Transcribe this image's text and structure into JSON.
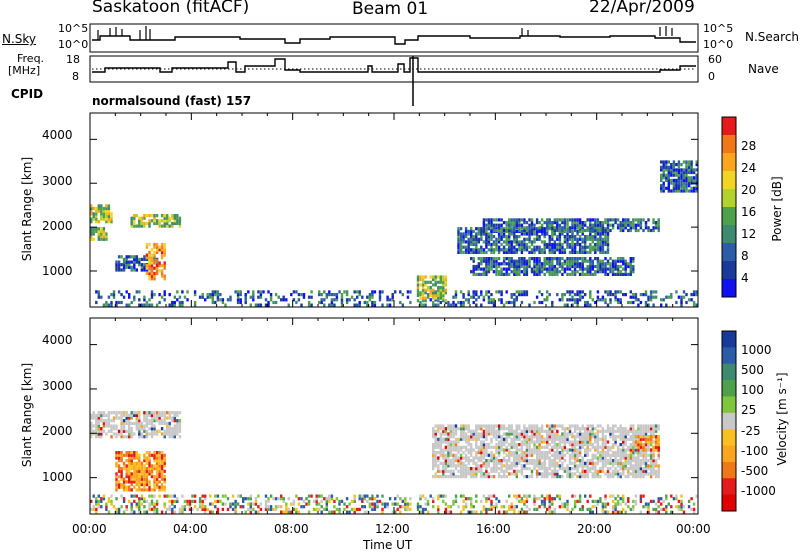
{
  "header": {
    "station": "Saskatoon (fitACF)",
    "beam": "Beam 01",
    "date": "22/Apr/2009"
  },
  "side_labels": {
    "nsky": "N.Sky",
    "freq_top": "Freq.",
    "freq_unit": "[MHz]",
    "cpid": "CPID",
    "nsearch": "N.Search",
    "nave": "Nave"
  },
  "cpid_text": "normalsound (fast) 157",
  "small_ticks": {
    "nsky_left": [
      "10^5",
      "10^0"
    ],
    "nsearch_right": [
      "10^5",
      "10^0"
    ],
    "freq_left": [
      "18",
      "8"
    ],
    "nave_right": [
      "60",
      "0"
    ]
  },
  "x_axis": {
    "label": "Time UT",
    "ticks": [
      "00:00",
      "04:00",
      "08:00",
      "12:00",
      "16:00",
      "20:00",
      "00:00"
    ]
  },
  "power_panel": {
    "ylabel": "Slant Range [km]",
    "yticks": [
      "4000",
      "3000",
      "2000",
      "1000"
    ],
    "cbar_label": "Power [dB]",
    "cbar_ticks": [
      "28",
      "24",
      "20",
      "16",
      "12",
      "8",
      "4"
    ],
    "cbar_colors": [
      "#e41a1c",
      "#f07818",
      "#f8a61e",
      "#f2d424",
      "#b4d22e",
      "#4fa04a",
      "#3f8a6e",
      "#2c5ca8",
      "#1a3a9a",
      "#1010f0"
    ]
  },
  "velocity_panel": {
    "ylabel": "Slant Range [km]",
    "yticks": [
      "4000",
      "3000",
      "2000",
      "1000"
    ],
    "cbar_label": "Velocity [m s⁻¹]",
    "cbar_ticks": [
      "1000",
      "500",
      "100",
      "25",
      "-25",
      "-100",
      "-500",
      "-1000"
    ],
    "cbar_colors": [
      "#1a3a9a",
      "#2c5ca8",
      "#3f8a6e",
      "#4fa04a",
      "#7ec63a",
      "#c8c8c8",
      "#f8c020",
      "#f8a61e",
      "#f07818",
      "#e41a1c",
      "#e00000"
    ]
  },
  "chart_data": {
    "type": "heatmap",
    "xlabel": "Time UT",
    "ylabel": "Slant Range [km]",
    "xlim_hours": [
      0,
      24
    ],
    "ylim_km": [
      180,
      4600
    ],
    "data_gap_hours": [
      12.6,
      12.85
    ],
    "power_bands": [
      {
        "t0": 0.0,
        "t1": 0.8,
        "r0": 2100,
        "r1": 2500,
        "level": "mid"
      },
      {
        "t0": 0.0,
        "t1": 0.7,
        "r0": 1700,
        "r1": 2000,
        "level": "mid"
      },
      {
        "t0": 1.0,
        "t1": 2.7,
        "r0": 1000,
        "r1": 1350,
        "level": "low"
      },
      {
        "t0": 1.6,
        "t1": 3.6,
        "r0": 2000,
        "r1": 2300,
        "level": "mid"
      },
      {
        "t0": 2.2,
        "t1": 3.0,
        "r0": 800,
        "r1": 1600,
        "level": "high"
      },
      {
        "t0": 12.9,
        "t1": 14.0,
        "r0": 300,
        "r1": 900,
        "level": "mid"
      },
      {
        "t0": 14.5,
        "t1": 20.5,
        "r0": 1400,
        "r1": 2000,
        "level": "low"
      },
      {
        "t0": 15.0,
        "t1": 21.5,
        "r0": 900,
        "r1": 1300,
        "level": "low"
      },
      {
        "t0": 15.5,
        "t1": 22.5,
        "r0": 1900,
        "r1": 2200,
        "level": "low"
      },
      {
        "t0": 22.5,
        "t1": 24.0,
        "r0": 2800,
        "r1": 3500,
        "level": "low"
      }
    ],
    "velocity_bands": [
      {
        "t0": 0.0,
        "t1": 3.6,
        "r0": 1900,
        "r1": 2500,
        "class": "near-zero"
      },
      {
        "t0": 1.0,
        "t1": 3.0,
        "r0": 700,
        "r1": 1600,
        "class": "negative"
      },
      {
        "t0": 13.5,
        "t1": 22.5,
        "r0": 1000,
        "r1": 2200,
        "class": "near-zero"
      },
      {
        "t0": 21.5,
        "t1": 22.5,
        "r0": 1600,
        "r1": 1950,
        "class": "negative"
      },
      {
        "t0": 0.0,
        "t1": 24.0,
        "r0": 200,
        "r1": 600,
        "class": "mixed-ground"
      }
    ]
  }
}
